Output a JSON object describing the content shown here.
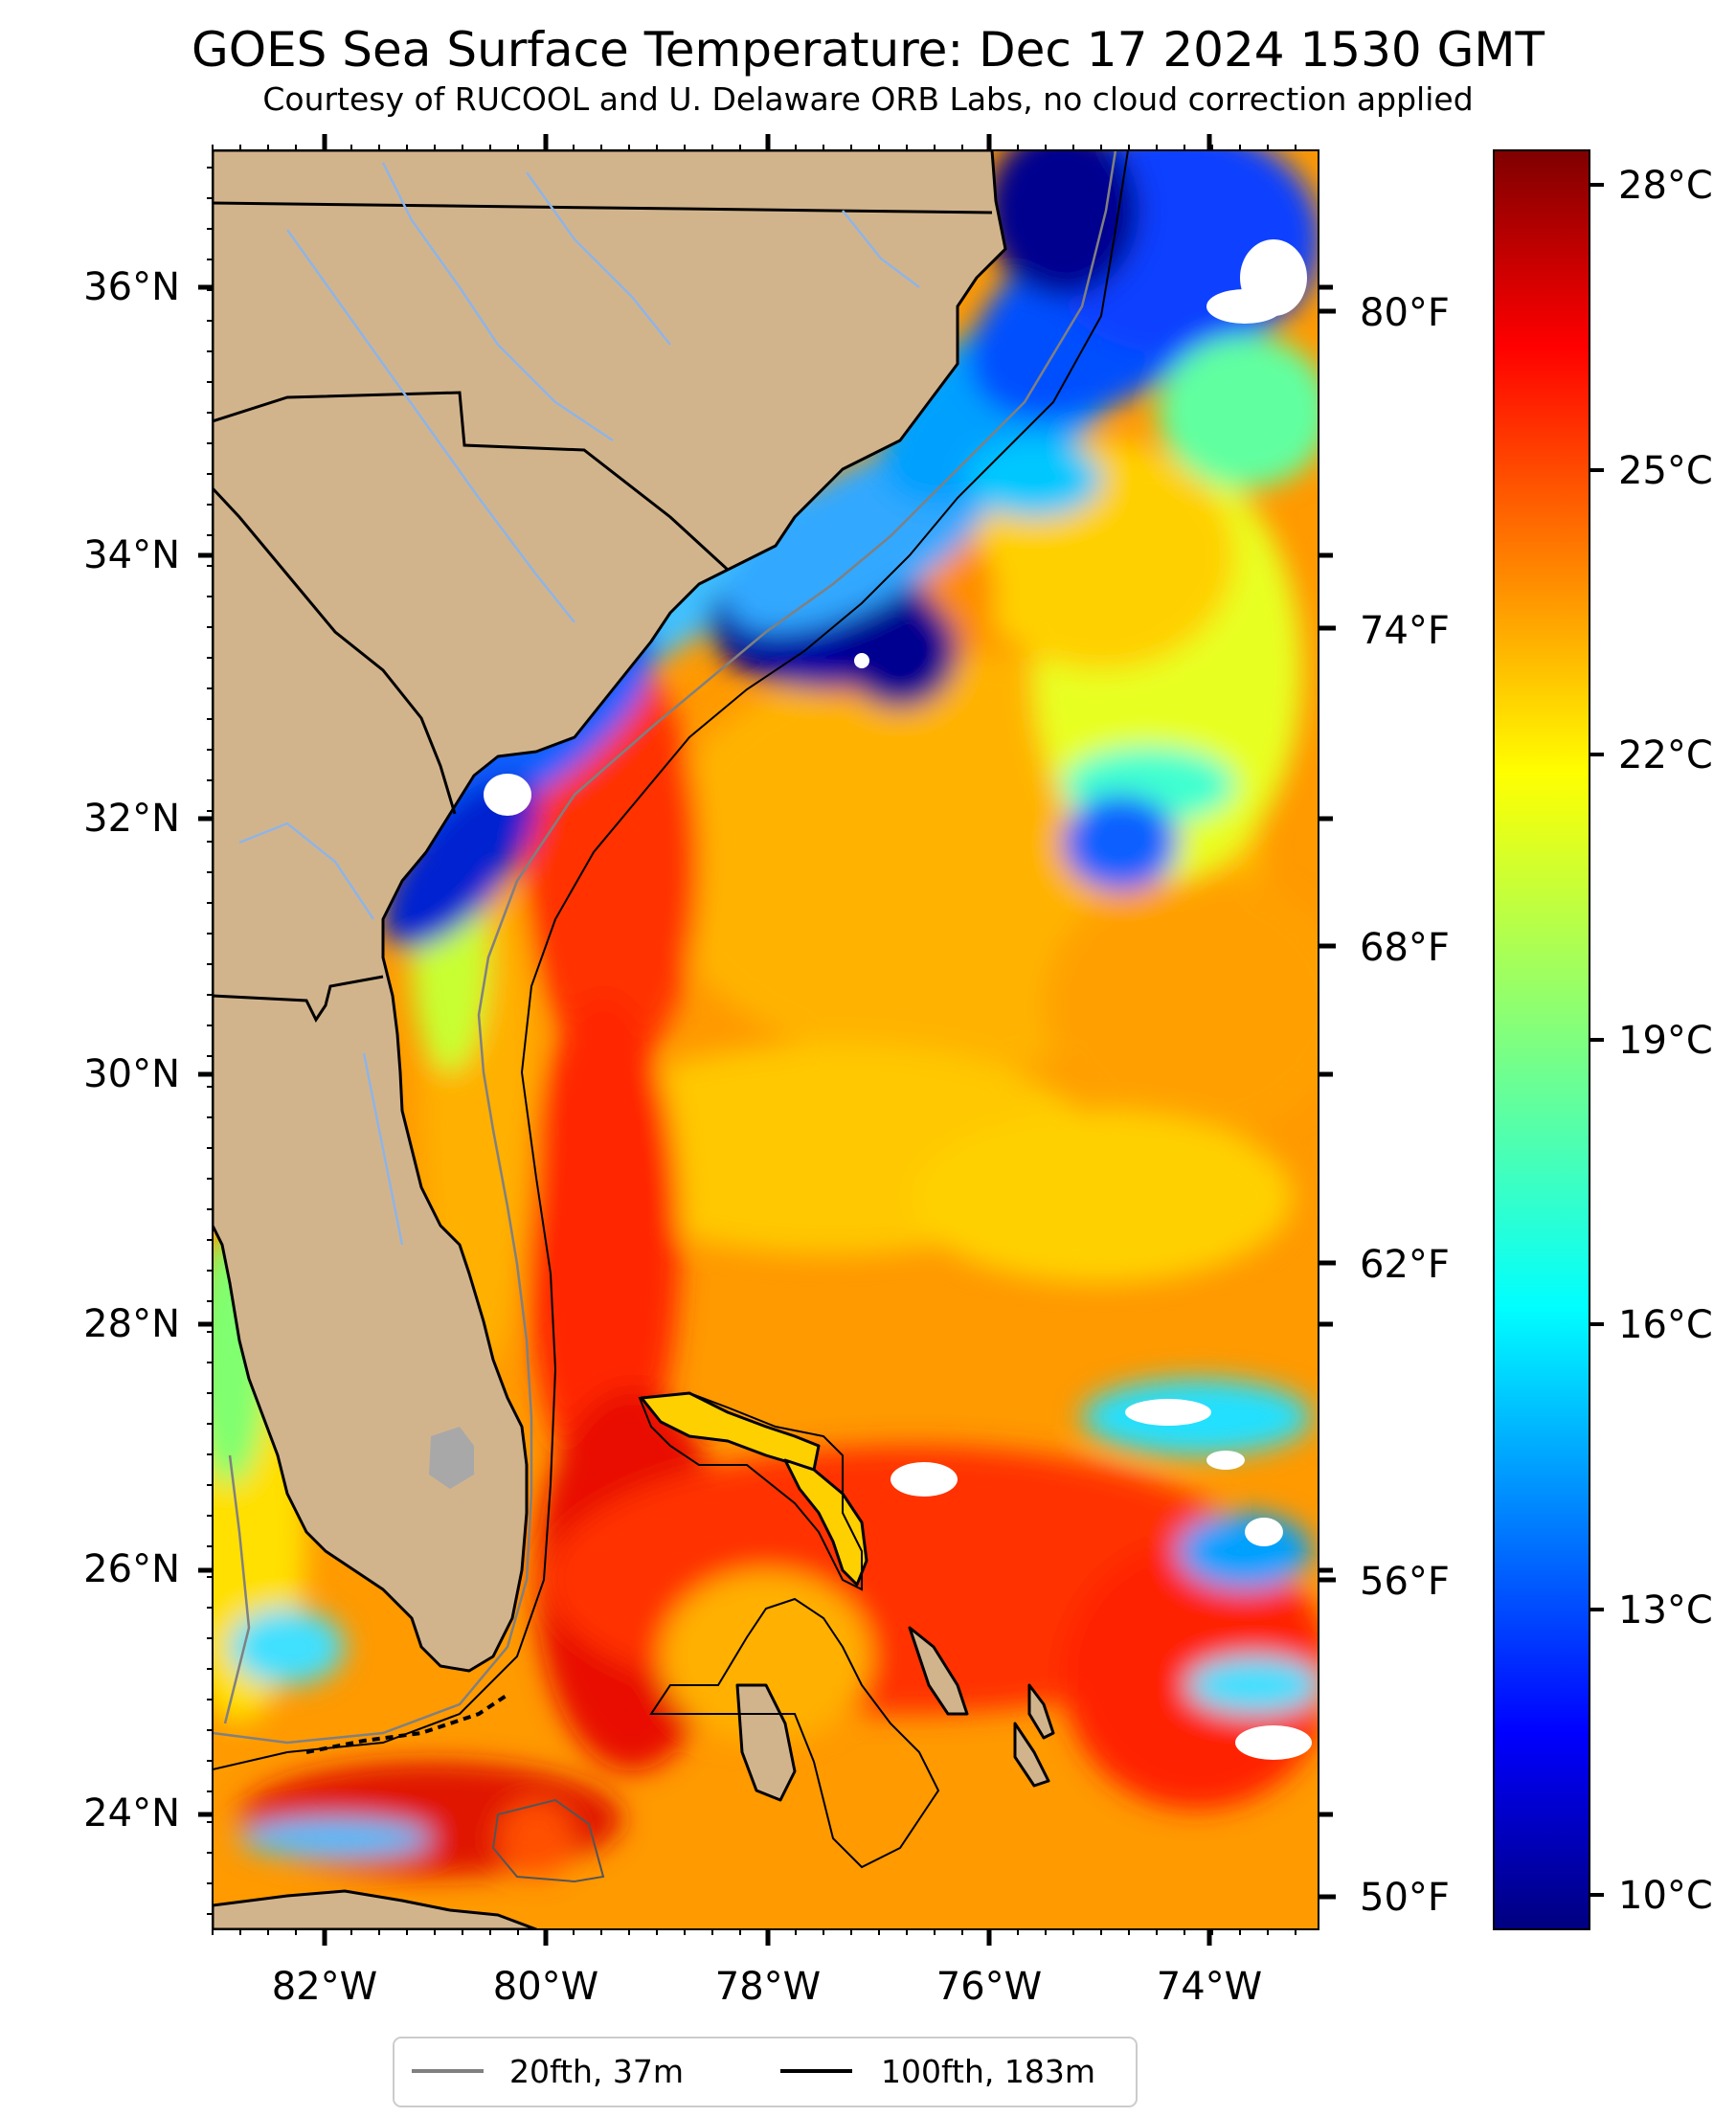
{
  "title": "GOES Sea Surface Temperature: Dec 17 2024 1530 GMT",
  "subtitle": "Courtesy of RUCOOL and U. Delaware ORB Labs, no cloud correction applied",
  "map": {
    "lat_ticks": [
      "36°N",
      "34°N",
      "32°N",
      "30°N",
      "28°N",
      "26°N",
      "24°N"
    ],
    "lon_ticks": [
      "82°W",
      "80°W",
      "78°W",
      "76°W",
      "74°W"
    ],
    "fahrenheit_ticks": [
      "80°F",
      "74°F",
      "68°F",
      "62°F",
      "56°F",
      "50°F"
    ],
    "lat_range": [
      "23°N",
      "37°N"
    ],
    "lon_range": [
      "83°W",
      "73°W"
    ],
    "land_color": "#d2b48c",
    "no_data_color": "#ffffff"
  },
  "colorbar": {
    "label_ticks": [
      "28°C",
      "25°C",
      "22°C",
      "19°C",
      "16°C",
      "13°C",
      "10°C"
    ],
    "range_c": [
      9.5,
      28.5
    ],
    "colormap": "jet",
    "stops": [
      "#00007f",
      "#0000ff",
      "#007fff",
      "#00ffff",
      "#7fff7f",
      "#ffff00",
      "#ff7f00",
      "#ff0000",
      "#7f0000"
    ]
  },
  "legend": {
    "items": [
      {
        "label": "20fth, 37m",
        "color": "#808080"
      },
      {
        "label": "100fth, 183m",
        "color": "#000000"
      }
    ]
  }
}
